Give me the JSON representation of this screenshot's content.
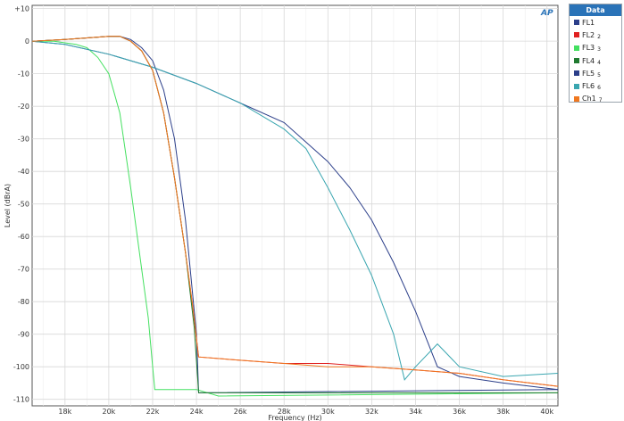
{
  "chart_data": {
    "type": "line",
    "title": "",
    "xlabel": "Frequency (Hz)",
    "ylabel": "Level (dBrA)",
    "xlim": [
      16500,
      40500
    ],
    "ylim": [
      -112,
      11
    ],
    "x_ticks": [
      18000,
      20000,
      22000,
      24000,
      26000,
      28000,
      30000,
      32000,
      34000,
      36000,
      38000,
      40000
    ],
    "x_tick_labels": [
      "18k",
      "20k",
      "22k",
      "24k",
      "26k",
      "28k",
      "30k",
      "32k",
      "34k",
      "36k",
      "38k",
      "40k"
    ],
    "y_ticks": [
      10,
      0,
      -10,
      -20,
      -30,
      -40,
      -50,
      -60,
      -70,
      -80,
      -90,
      -100,
      -110
    ],
    "y_tick_labels": [
      "+10",
      "0",
      "-10",
      "-20",
      "-30",
      "-40",
      "-50",
      "-60",
      "-70",
      "-80",
      "-90",
      "-100",
      "-110"
    ],
    "grid": true,
    "legend_title": "Data",
    "legend_position": "right",
    "logo_text": "AP",
    "series": [
      {
        "name": "FL1",
        "num": "",
        "color": "#2c3f8a",
        "x": [
          16500,
          18000,
          19000,
          20000,
          20500,
          21000,
          21500,
          22000,
          22500,
          23000,
          23500,
          24000,
          24100,
          40500
        ],
        "y": [
          0,
          0.5,
          1,
          1.5,
          1.5,
          0.5,
          -2,
          -6,
          -15,
          -30,
          -55,
          -90,
          -108,
          -107
        ]
      },
      {
        "name": "FL2",
        "num": "2",
        "color": "#e02020",
        "x": [
          16500,
          18000,
          19000,
          20000,
          20500,
          21000,
          21500,
          22000,
          22500,
          23000,
          23500,
          23800,
          24100,
          26000,
          28000,
          30000,
          32000,
          34000,
          36000,
          38000,
          40500
        ],
        "y": [
          0,
          0.5,
          1,
          1.5,
          1.5,
          0,
          -3,
          -9,
          -22,
          -42,
          -65,
          -80,
          -97,
          -98,
          -99,
          -99,
          -100,
          -101,
          -102,
          -104,
          -106
        ]
      },
      {
        "name": "FL3",
        "num": "3",
        "color": "#44e060",
        "x": [
          16500,
          17500,
          18500,
          19000,
          19500,
          20000,
          20500,
          21000,
          21500,
          21800,
          22000,
          22100,
          24000,
          25000,
          40500
        ],
        "y": [
          0,
          0,
          -1,
          -2,
          -5,
          -10,
          -22,
          -45,
          -70,
          -85,
          -100,
          -107,
          -107,
          -109,
          -108
        ]
      },
      {
        "name": "FL4",
        "num": "4",
        "color": "#207a30",
        "x": [
          16500,
          18000,
          19000,
          20000,
          20500,
          21000,
          21500,
          22000,
          22500,
          23000,
          23500,
          23900,
          24100,
          40500
        ],
        "y": [
          0,
          0.5,
          1,
          1.5,
          1.5,
          0,
          -3,
          -9,
          -22,
          -42,
          -65,
          -88,
          -108,
          -108
        ]
      },
      {
        "name": "FL5",
        "num": "5",
        "color": "#2c3f8a",
        "x": [
          16500,
          18000,
          20000,
          22000,
          24000,
          26000,
          28000,
          30000,
          31000,
          32000,
          33000,
          34000,
          35000,
          36000,
          38000,
          40500
        ],
        "y": [
          0,
          -1,
          -4,
          -8,
          -13,
          -19,
          -25,
          -37,
          -45,
          -55,
          -68,
          -83,
          -100,
          -103,
          -105,
          -107
        ]
      },
      {
        "name": "FL6",
        "num": "6",
        "color": "#3aa6b0",
        "x": [
          16500,
          18000,
          20000,
          22000,
          24000,
          26000,
          28000,
          29000,
          30000,
          31000,
          32000,
          33000,
          33500,
          34000,
          35000,
          36000,
          38000,
          40500
        ],
        "y": [
          0,
          -1,
          -4,
          -8,
          -13,
          -19,
          -27,
          -33,
          -45,
          -58,
          -72,
          -90,
          -104,
          -100,
          -93,
          -100,
          -103,
          -102
        ]
      },
      {
        "name": "Ch1",
        "num": "7",
        "color": "#f07820",
        "x": [
          16500,
          18000,
          19000,
          20000,
          20500,
          21000,
          21500,
          22000,
          22500,
          23000,
          23500,
          23800,
          24100,
          26000,
          28000,
          30000,
          32000,
          34000,
          36000,
          38000,
          40500
        ],
        "y": [
          0,
          0.5,
          1,
          1.5,
          1.5,
          0,
          -3,
          -9,
          -22,
          -42,
          -65,
          -80,
          -97,
          -98,
          -99,
          -100,
          -100,
          -101,
          -102,
          -104,
          -106
        ]
      }
    ]
  }
}
